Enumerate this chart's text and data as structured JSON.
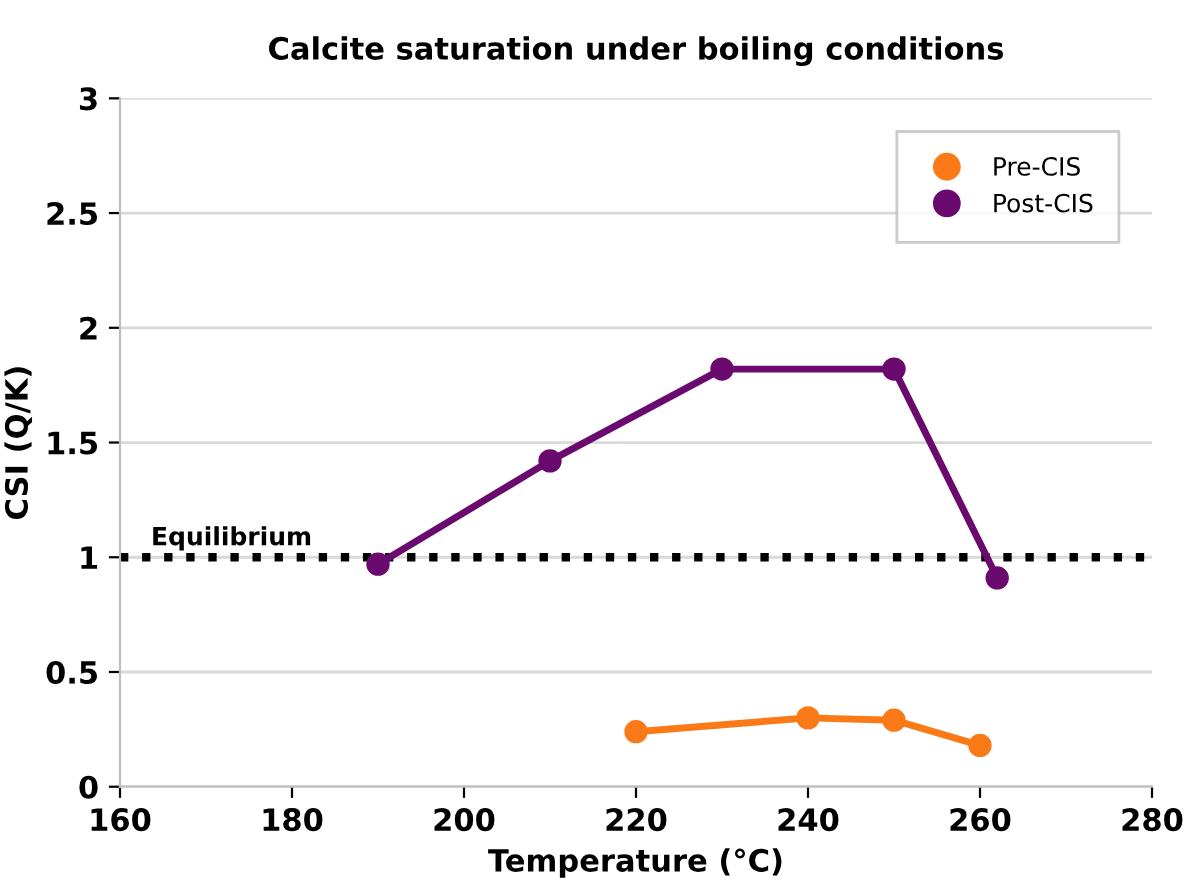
{
  "chart_data": {
    "type": "line",
    "title": "Calcite saturation under boiling conditions",
    "xlabel": "Temperature (°C)",
    "ylabel": "CSI (Q/K)",
    "series": [
      {
        "name": "Pre-CIS",
        "color": "#f97a17",
        "x": [
          220,
          240,
          250,
          260
        ],
        "values": [
          0.24,
          0.3,
          0.29,
          0.18
        ]
      },
      {
        "name": "Post-CIS",
        "color": "#6a0a6e",
        "x": [
          190,
          210,
          230,
          250,
          262
        ],
        "values": [
          0.97,
          1.42,
          1.82,
          1.82,
          0.91
        ]
      }
    ],
    "xlim": [
      160,
      280
    ],
    "xticks": [
      160,
      180,
      200,
      220,
      240,
      260,
      280
    ],
    "ylim": [
      0,
      3
    ],
    "yticks": [
      0,
      0.5,
      1,
      1.5,
      2,
      2.5,
      3
    ],
    "ref_lines": [
      {
        "axis": "y",
        "value": 1,
        "label": "Equilibrium",
        "color": "#000000",
        "line_style": "dotted"
      }
    ],
    "grid": "y",
    "legend": "top right",
    "marker": "circle",
    "line_style": "solid"
  }
}
